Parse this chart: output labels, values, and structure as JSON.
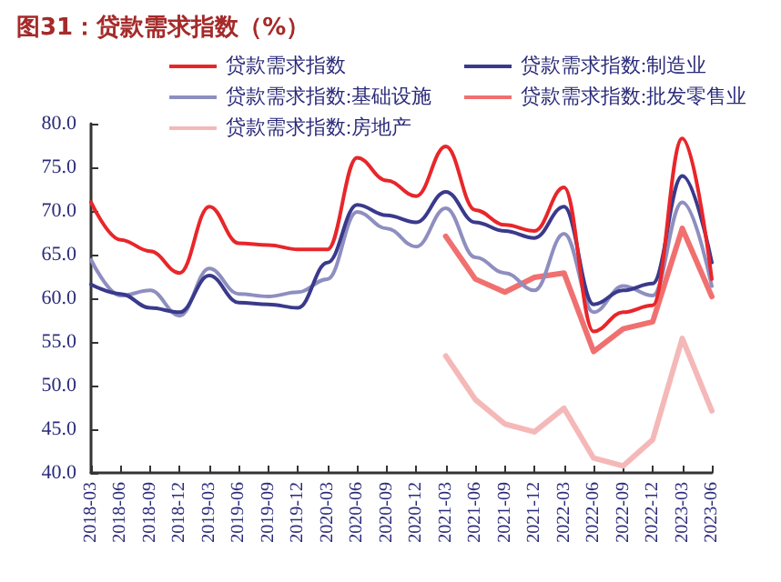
{
  "chart_data": {
    "type": "line",
    "title": "图31：贷款需求指数（%）",
    "categories": [
      "2018-03",
      "2018-06",
      "2018-09",
      "2018-12",
      "2019-03",
      "2019-06",
      "2019-09",
      "2019-12",
      "2020-03",
      "2020-06",
      "2020-09",
      "2020-12",
      "2021-03",
      "2021-06",
      "2021-09",
      "2021-12",
      "2022-03",
      "2022-06",
      "2022-09",
      "2022-12",
      "2023-03",
      "2023-06"
    ],
    "series": [
      {
        "name": "贷款需求指数",
        "color": "#e8262a",
        "values": [
          71.0,
          66.7,
          65.4,
          62.9,
          70.5,
          66.3,
          66.1,
          65.6,
          65.6,
          76.1,
          73.5,
          71.7,
          77.4,
          70.1,
          68.4,
          67.7,
          72.7,
          56.2,
          58.4,
          59.2,
          78.3,
          62.2
        ]
      },
      {
        "name": "贷款需求指数:制造业",
        "color": "#3a3a8c",
        "values": [
          61.6,
          60.5,
          58.9,
          58.4,
          62.6,
          59.5,
          59.3,
          58.9,
          64.1,
          70.7,
          69.5,
          68.7,
          72.2,
          68.7,
          67.7,
          66.9,
          70.5,
          59.3,
          60.9,
          61.7,
          74.0,
          64.1
        ]
      },
      {
        "name": "贷款需求指数:基础设施",
        "color": "#8e8ec0",
        "values": [
          64.4,
          60.3,
          60.9,
          58.0,
          63.4,
          60.5,
          60.2,
          60.7,
          62.2,
          69.9,
          68.0,
          65.9,
          70.3,
          64.7,
          62.9,
          60.9,
          67.4,
          58.4,
          61.4,
          60.3,
          71.0,
          61.4
        ]
      },
      {
        "name": "贷款需求指数:批发零售业",
        "color": "#f07070",
        "values": [
          null,
          null,
          null,
          null,
          null,
          null,
          null,
          null,
          null,
          null,
          null,
          null,
          67.1,
          62.2,
          60.7,
          62.4,
          62.9,
          53.9,
          56.5,
          57.3,
          68.0,
          60.2
        ]
      },
      {
        "name": "贷款需求指数:房地产",
        "color": "#f5b8b8",
        "values": [
          null,
          null,
          null,
          null,
          null,
          null,
          null,
          null,
          null,
          null,
          null,
          null,
          53.4,
          48.4,
          45.6,
          44.7,
          47.4,
          41.7,
          40.8,
          43.8,
          55.4,
          47.1
        ]
      }
    ],
    "ylim": [
      40,
      80
    ],
    "yticks": [
      {
        "value": 40,
        "label": "40.0"
      },
      {
        "value": 45,
        "label": "45.0"
      },
      {
        "value": 50,
        "label": "50.0"
      },
      {
        "value": 55,
        "label": "55.0"
      },
      {
        "value": 60,
        "label": "60.0"
      },
      {
        "value": 65,
        "label": "65.0"
      },
      {
        "value": 70,
        "label": "70.0"
      },
      {
        "value": 75,
        "label": "75.0"
      },
      {
        "value": 80,
        "label": "80.0"
      }
    ],
    "grid": false,
    "legend": "top",
    "marker": "none"
  }
}
